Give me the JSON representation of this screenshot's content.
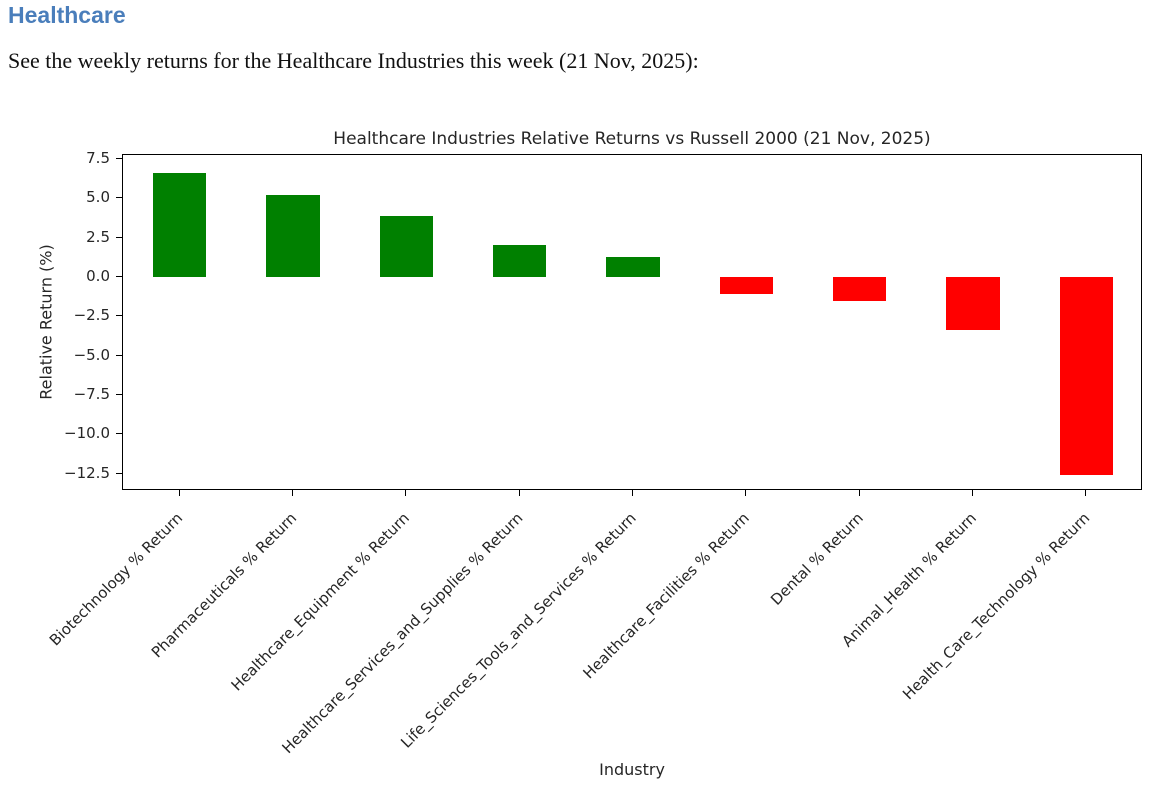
{
  "page": {
    "heading": "Healthcare",
    "heading_color": "#4a7ebb",
    "intro": "See the weekly returns for the Healthcare Industries this week (21 Nov, 2025):"
  },
  "chart_data": {
    "type": "bar",
    "title": "Healthcare Industries Relative Returns vs Russell 2000 (21 Nov, 2025)",
    "xlabel": "Industry",
    "ylabel": "Relative Return (%)",
    "categories": [
      "Biotechnology % Return",
      "Pharmaceuticals % Return",
      "Healthcare_Equipment % Return",
      "Healthcare_Services_and_Supplies % Return",
      "Life_Sciences_Tools_and_Services % Return",
      "Healthcare_Facilities % Return",
      "Dental % Return",
      "Animal_Health % Return",
      "Health_Care_Technology % Return"
    ],
    "values": [
      6.6,
      5.2,
      3.9,
      2.0,
      1.3,
      -1.1,
      -1.5,
      -3.4,
      -12.6
    ],
    "positive_color": "#008000",
    "negative_color": "#ff0000",
    "ylim": [
      -13.6,
      7.75
    ],
    "yticks": [
      7.5,
      5.0,
      2.5,
      0.0,
      -2.5,
      -5.0,
      -7.5,
      -10.0,
      -12.5
    ],
    "bar_width_frac": 0.47,
    "grid": false,
    "xtick_rotation_deg": 45
  }
}
